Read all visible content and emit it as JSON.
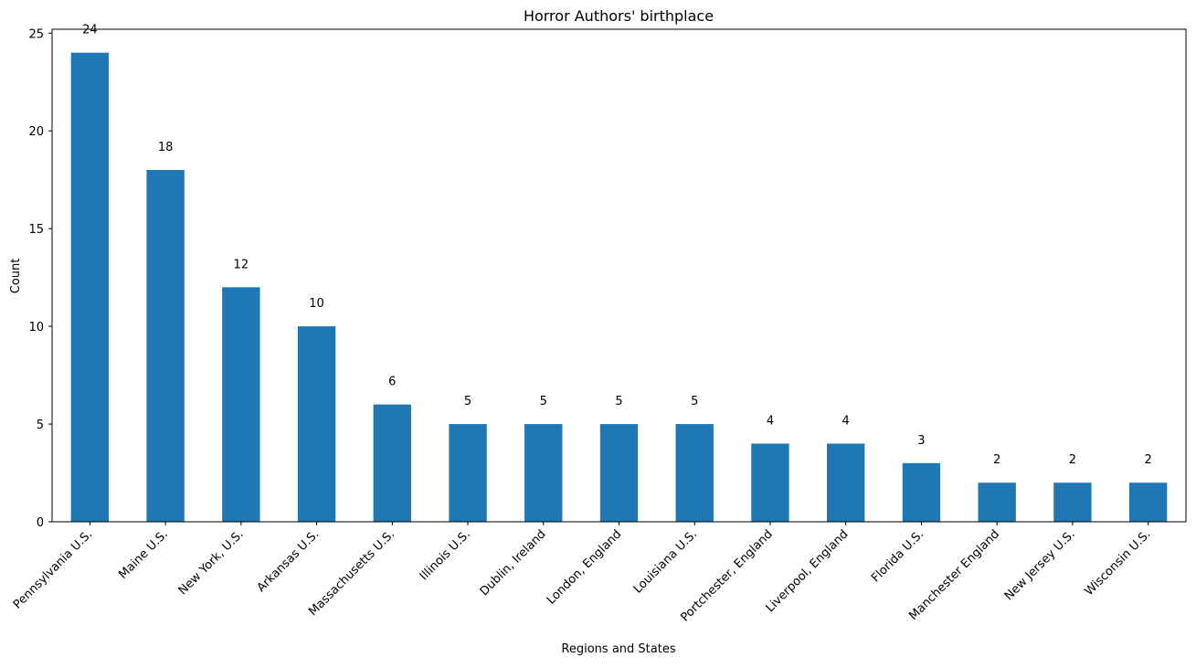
{
  "chart_data": {
    "type": "bar",
    "title": "Horror Authors' birthplace",
    "xlabel": "Regions and States",
    "ylabel": "Count",
    "categories": [
      "Pennsylvania  U.S.",
      "Maine  U.S.",
      "New York, U.S.",
      "Arkansas  U.S.",
      "Massachusetts  U.S.",
      "Illinois  U.S.",
      "Dublin, Ireland",
      "London, England",
      "Louisiana  U.S.",
      "Portchester, England",
      "Liverpool, England",
      "Florida  U.S.",
      "Manchester  England",
      "New Jersey  U.S.",
      "Wisconsin  U.S."
    ],
    "values": [
      24,
      18,
      12,
      10,
      6,
      5,
      5,
      5,
      5,
      4,
      4,
      3,
      2,
      2,
      2
    ],
    "data_labels": [
      "24",
      "18",
      "12",
      "10",
      "6",
      "5",
      "5",
      "5",
      "5",
      "4",
      "4",
      "3",
      "2",
      "2",
      "2"
    ],
    "yticks": [
      0,
      5,
      10,
      15,
      20,
      25
    ],
    "ylim": [
      0,
      25.2
    ],
    "grid": false,
    "legend": false,
    "colors": {
      "bar": "#1f77b4",
      "axis": "#000000",
      "background": "#ffffff"
    }
  }
}
